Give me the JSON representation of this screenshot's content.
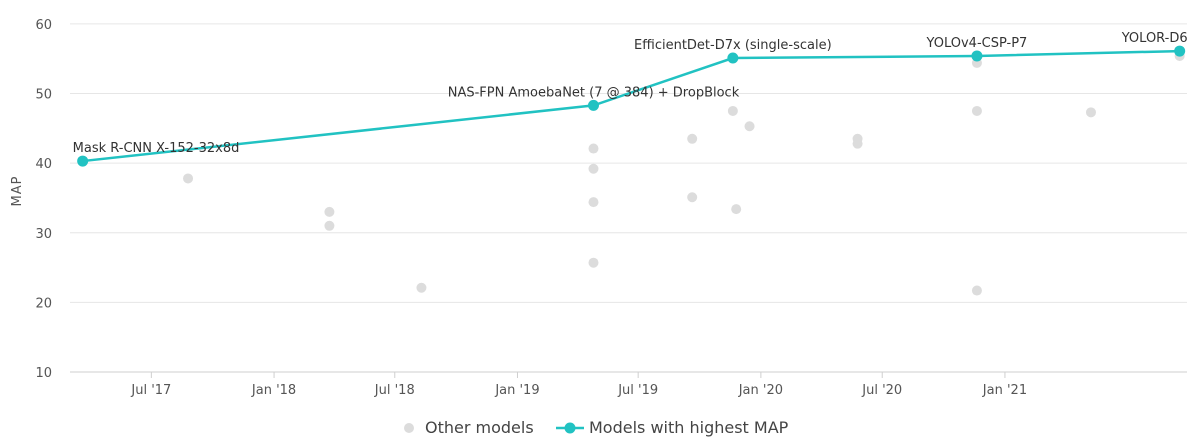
{
  "chart_data": {
    "type": "scatter",
    "ylabel": "MAP",
    "ylim": [
      10,
      62
    ],
    "xlim": [
      "2017-03-01",
      "2021-10-01"
    ],
    "yticks": [
      10,
      20,
      30,
      40,
      50,
      60
    ],
    "xticks": [
      {
        "date": "2017-07-01",
        "label": "Jul '17"
      },
      {
        "date": "2018-01-01",
        "label": "Jan '18"
      },
      {
        "date": "2018-07-01",
        "label": "Jul '18"
      },
      {
        "date": "2019-01-01",
        "label": "Jan '19"
      },
      {
        "date": "2019-07-01",
        "label": "Jul '19"
      },
      {
        "date": "2020-01-01",
        "label": "Jan '20"
      },
      {
        "date": "2020-07-01",
        "label": "Jul '20"
      },
      {
        "date": "2021-01-01",
        "label": "Jan '21"
      }
    ],
    "grid": true,
    "legend_position": "bottom",
    "series": [
      {
        "name": "Other models",
        "color": "#dcdcdc",
        "points": [
          {
            "x": "2017-08-25",
            "y": 37.8
          },
          {
            "x": "2018-03-25",
            "y": 33.0
          },
          {
            "x": "2018-03-25",
            "y": 31.0
          },
          {
            "x": "2018-08-10",
            "y": 22.1
          },
          {
            "x": "2019-04-25",
            "y": 42.1
          },
          {
            "x": "2019-04-25",
            "y": 39.2
          },
          {
            "x": "2019-04-25",
            "y": 34.4
          },
          {
            "x": "2019-04-25",
            "y": 25.7
          },
          {
            "x": "2019-09-20",
            "y": 43.5
          },
          {
            "x": "2019-09-20",
            "y": 35.1
          },
          {
            "x": "2019-11-20",
            "y": 47.5
          },
          {
            "x": "2019-11-25",
            "y": 33.4
          },
          {
            "x": "2019-12-15",
            "y": 45.3
          },
          {
            "x": "2020-05-25",
            "y": 43.5
          },
          {
            "x": "2020-05-25",
            "y": 42.8
          },
          {
            "x": "2020-11-20",
            "y": 54.4
          },
          {
            "x": "2020-11-20",
            "y": 47.5
          },
          {
            "x": "2020-11-20",
            "y": 21.7
          },
          {
            "x": "2021-05-10",
            "y": 47.3
          },
          {
            "x": "2021-09-20",
            "y": 55.4
          }
        ]
      },
      {
        "name": "Models with highest MAP",
        "color": "#21c2c2",
        "points": [
          {
            "x": "2017-03-20",
            "y": 40.3,
            "label": "Mask R-CNN X-152-32x8d"
          },
          {
            "x": "2019-04-25",
            "y": 48.3,
            "label": "NAS-FPN AmoebaNet (7 @ 384) + DropBlock"
          },
          {
            "x": "2019-11-20",
            "y": 55.1,
            "label": "EfficientDet-D7x (single-scale)"
          },
          {
            "x": "2020-11-20",
            "y": 55.4,
            "label": "YOLOv4-CSP-P7"
          },
          {
            "x": "2021-09-20",
            "y": 56.1,
            "label": "YOLOR-D6"
          }
        ]
      }
    ]
  }
}
